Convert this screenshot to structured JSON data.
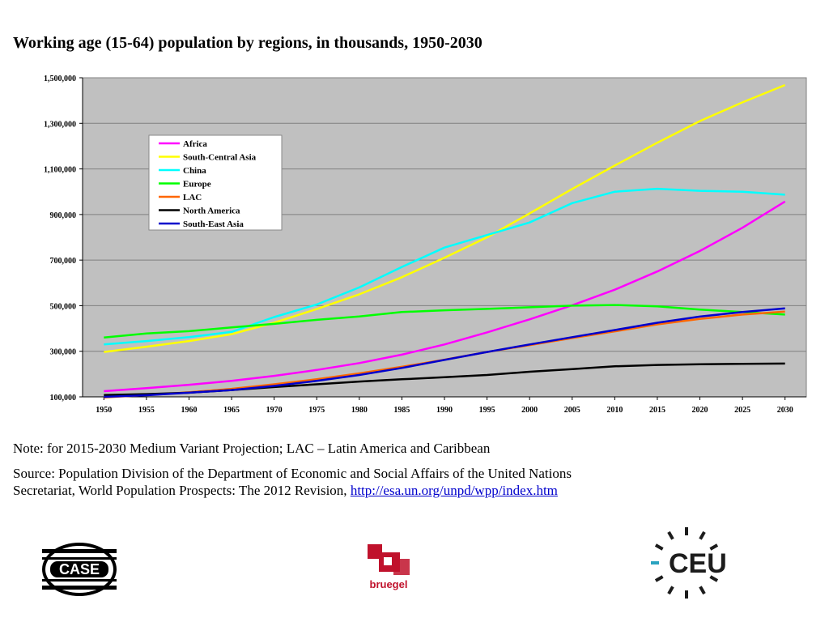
{
  "page": {
    "title": "Working age (15-64) population by regions, in thousands, 1950-2030",
    "note": "Note: for 2015-2030 Medium Variant Projection; LAC – Latin America and Caribbean",
    "source_line1": "Source: Population Division of the Department of Economic and Social Affairs of the United Nations",
    "source_line2_prefix": "Secretariat, World Population Prospects: The 2012 Revision, ",
    "source_link": "http://esa.un.org/unpd/wpp/index.htm"
  },
  "logos": {
    "case_text": "CASE",
    "bruegel_text": "bruegel",
    "ceu_text": "CEU",
    "bruegel_color": "#c0122c",
    "ceu_color": "#1c1c1c",
    "ceu_accent": "#2aa3c0"
  },
  "chart_data": {
    "type": "line",
    "title": "Working age (15-64) population by regions, in thousands, 1950-2030",
    "xlabel": "",
    "ylabel": "",
    "x": [
      1950,
      1955,
      1960,
      1965,
      1970,
      1975,
      1980,
      1985,
      1990,
      1995,
      2000,
      2005,
      2010,
      2015,
      2020,
      2025,
      2030
    ],
    "ylim": [
      100000,
      1500000
    ],
    "yticks": [
      100000,
      300000,
      500000,
      700000,
      900000,
      1100000,
      1300000,
      1500000
    ],
    "ytick_labels": [
      "100,000",
      "300,000",
      "500,000",
      "700,000",
      "900,000",
      "1,100,000",
      "1,300,000",
      "1,500,000"
    ],
    "grid": true,
    "legend_position": "top-left",
    "plot_background": "#c0c0c0",
    "series": [
      {
        "name": "Africa",
        "color": "#ff00ff",
        "values": [
          125000,
          138000,
          153000,
          170000,
          192000,
          218000,
          248000,
          285000,
          330000,
          383000,
          440000,
          502000,
          570000,
          650000,
          740000,
          842000,
          957000
        ]
      },
      {
        "name": "South-Central Asia",
        "color": "#ffff00",
        "values": [
          297000,
          320000,
          345000,
          375000,
          425000,
          485000,
          550000,
          625000,
          710000,
          800000,
          905000,
          1012000,
          1115000,
          1215000,
          1310000,
          1392000,
          1468000
        ]
      },
      {
        "name": "China",
        "color": "#00ffff",
        "values": [
          330000,
          345000,
          362000,
          385000,
          450000,
          505000,
          580000,
          670000,
          755000,
          810000,
          865000,
          950000,
          1000000,
          1013000,
          1004000,
          1000000,
          987000
        ]
      },
      {
        "name": "Europe",
        "color": "#00ff00",
        "values": [
          360000,
          378000,
          388000,
          405000,
          420000,
          438000,
          453000,
          472000,
          480000,
          486000,
          493000,
          500000,
          503000,
          497000,
          483000,
          472000,
          461000
        ]
      },
      {
        "name": "LAC",
        "color": "#ff6600",
        "values": [
          97000,
          108000,
          120000,
          135000,
          155000,
          177000,
          203000,
          232000,
          263000,
          297000,
          327000,
          358000,
          387000,
          418000,
          442000,
          461000,
          474000
        ]
      },
      {
        "name": "North America",
        "color": "#000000",
        "values": [
          108000,
          112000,
          118000,
          130000,
          143000,
          155000,
          167000,
          177000,
          186000,
          196000,
          210000,
          222000,
          234000,
          240000,
          243000,
          245000,
          246000
        ]
      },
      {
        "name": "South-East Asia",
        "color": "#0000cc",
        "values": [
          100000,
          107000,
          118000,
          130000,
          148000,
          170000,
          196000,
          227000,
          262000,
          297000,
          330000,
          362000,
          393000,
          425000,
          452000,
          472000,
          488000
        ]
      }
    ]
  }
}
